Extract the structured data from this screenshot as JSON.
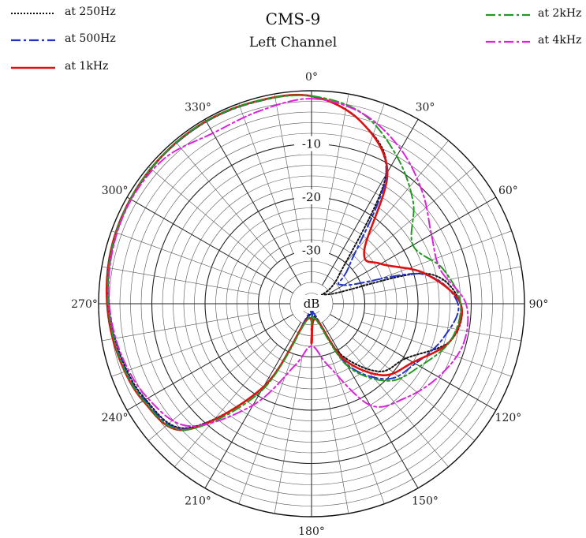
{
  "chart_data": {
    "type": "polar",
    "title": "CMS-9",
    "subtitle": "Left Channel",
    "radial_unit_label": "dB",
    "radial_range": [
      -40,
      0
    ],
    "radial_tick_labels": [
      {
        "value": -10,
        "label": "-10"
      },
      {
        "value": -20,
        "label": "-20"
      },
      {
        "value": -30,
        "label": "-30"
      }
    ],
    "angle_tick_labels": [
      "0°",
      "30°",
      "60°",
      "90°",
      "120°",
      "150°",
      "180°",
      "210°",
      "240°",
      "270°",
      "300°",
      "330°"
    ],
    "angles_deg": [
      0,
      15,
      30,
      45,
      60,
      75,
      90,
      105,
      120,
      135,
      150,
      165,
      180,
      195,
      210,
      225,
      240,
      255,
      270,
      285,
      300,
      315,
      330,
      345
    ],
    "legend_position": "top-left and top-right",
    "series": [
      {
        "name": "at 250Hz",
        "color": "#111111",
        "dash": "dotted",
        "values": [
          -1.0,
          -4.5,
          -12.0,
          -33.0,
          -36.5,
          -18.0,
          -12.0,
          -13.0,
          -19.5,
          -22.0,
          -29.0,
          -37.5,
          -35.0,
          -37.5,
          -22.0,
          -7.0,
          -4.0,
          -2.8,
          -1.9,
          -1.2,
          -0.8,
          -0.6,
          -0.5,
          -0.6
        ]
      },
      {
        "name": "at 500Hz",
        "color": "#2233cc",
        "dash": "dash-dot",
        "values": [
          -1.0,
          -4.5,
          -12.0,
          -30.0,
          -33.0,
          -18.5,
          -12.5,
          -14.5,
          -17.5,
          -20.0,
          -27.0,
          -38.0,
          -37.0,
          -38.0,
          -22.0,
          -6.8,
          -3.8,
          -2.6,
          -1.8,
          -1.1,
          -0.7,
          -0.6,
          -0.5,
          -0.7
        ]
      },
      {
        "name": "at 1kHz",
        "color": "#dd1111",
        "dash": "solid",
        "values": [
          -1.0,
          -4.5,
          -11.5,
          -26.0,
          -25.0,
          -18.0,
          -12.0,
          -13.0,
          -18.0,
          -21.0,
          -28.0,
          -37.0,
          -32.5,
          -37.0,
          -22.0,
          -6.5,
          -3.5,
          -2.4,
          -1.6,
          -1.0,
          -0.7,
          -0.5,
          -0.4,
          -0.6
        ]
      },
      {
        "name": "at 2kHz",
        "color": "#229922",
        "dash": "dash-dot",
        "values": [
          -1.0,
          -3.0,
          -8.0,
          -13.0,
          -18.0,
          -14.5,
          -12.0,
          -13.0,
          -16.5,
          -19.5,
          -26.5,
          -37.0,
          -36.0,
          -37.0,
          -21.0,
          -6.5,
          -3.6,
          -2.5,
          -1.8,
          -1.1,
          -0.7,
          -0.5,
          -0.4,
          -0.6
        ]
      },
      {
        "name": "at 4kHz",
        "color": "#dd22dd",
        "dash": "dash-dot",
        "values": [
          -1.5,
          -3.0,
          -6.5,
          -10.5,
          -14.0,
          -15.0,
          -11.0,
          -10.5,
          -12.5,
          -15.0,
          -18.0,
          -28.0,
          -32.0,
          -28.0,
          -18.0,
          -7.5,
          -4.5,
          -3.0,
          -2.0,
          -1.3,
          -0.9,
          -1.2,
          -3.0,
          -2.5
        ]
      }
    ]
  }
}
